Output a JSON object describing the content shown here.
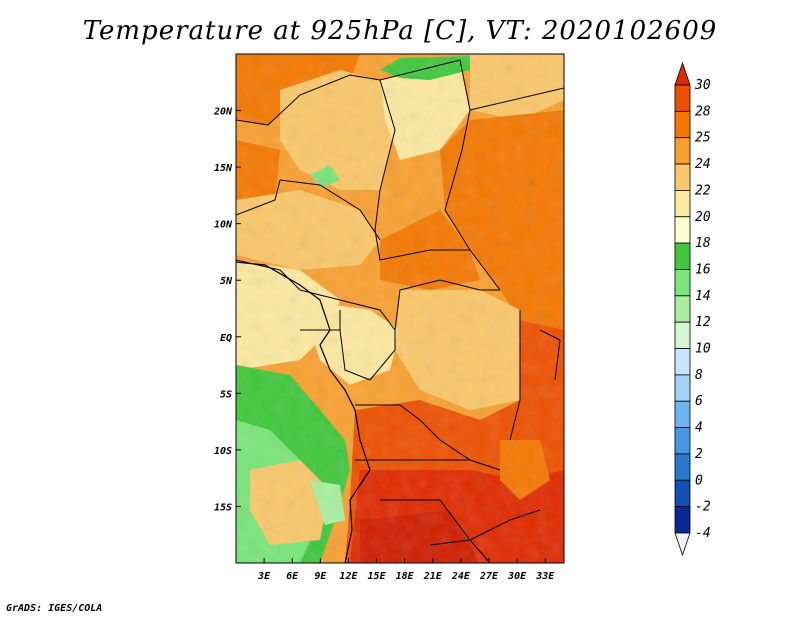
{
  "title": "Temperature at 925hPa [C], VT: 2020102609",
  "credit": "GrADS: IGES/COLA",
  "map": {
    "lon_labels": [
      "3E",
      "6E",
      "9E",
      "12E",
      "15E",
      "18E",
      "21E",
      "24E",
      "27E",
      "30E",
      "33E"
    ],
    "lat_labels": [
      "20N",
      "15N",
      "10N",
      "5N",
      "EQ",
      "5S",
      "10S",
      "15S"
    ],
    "lon_range": [
      0,
      35
    ],
    "lat_range": [
      -20,
      25
    ]
  },
  "colorbar": {
    "labels": [
      "30",
      "28",
      "25",
      "24",
      "22",
      "20",
      "18",
      "16",
      "14",
      "12",
      "10",
      "8",
      "6",
      "4",
      "2",
      "0",
      "-2",
      "-4"
    ],
    "colors": [
      "#e02a00",
      "#ee5000",
      "#f57800",
      "#f9a030",
      "#fbc86a",
      "#fde9a0",
      "#ffffd2",
      "#3fc83c",
      "#78e678",
      "#a8f0a0",
      "#d2f8d2",
      "#c8e6fa",
      "#a0d2fa",
      "#6eb4f0",
      "#4696e6",
      "#2878d2",
      "#1050b4",
      "#0a2896",
      "#f0f0ff"
    ]
  }
}
